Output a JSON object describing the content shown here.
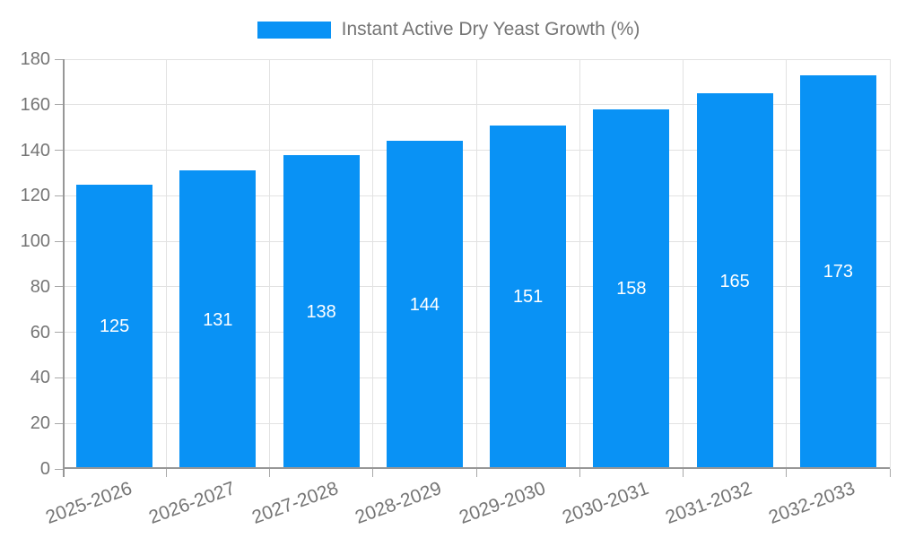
{
  "chart_data": {
    "type": "bar",
    "title": "",
    "legend_label": "Instant Active Dry Yeast Growth (%)",
    "legend_position": "top-center",
    "categories": [
      "2025-2026",
      "2026-2027",
      "2027-2028",
      "2028-2029",
      "2029-2030",
      "2030-2031",
      "2031-2032",
      "2032-2033"
    ],
    "values": [
      125,
      131,
      138,
      144,
      151,
      158,
      165,
      173
    ],
    "xlabel": "",
    "ylabel": "",
    "ylim": [
      0,
      180
    ],
    "ytick_step": 20,
    "ytick_labels": [
      "0",
      "20",
      "40",
      "60",
      "80",
      "100",
      "120",
      "140",
      "160",
      "180"
    ],
    "grid": true,
    "colors": {
      "bar": "#0992F5",
      "grid_line": "#e2e2e2",
      "axis_line": "#979797",
      "tick_mark": "#a8a8a8",
      "tick_text": "#757575",
      "legend_text": "#757575",
      "value_label": "#ffffff",
      "background": "#ffffff"
    }
  }
}
